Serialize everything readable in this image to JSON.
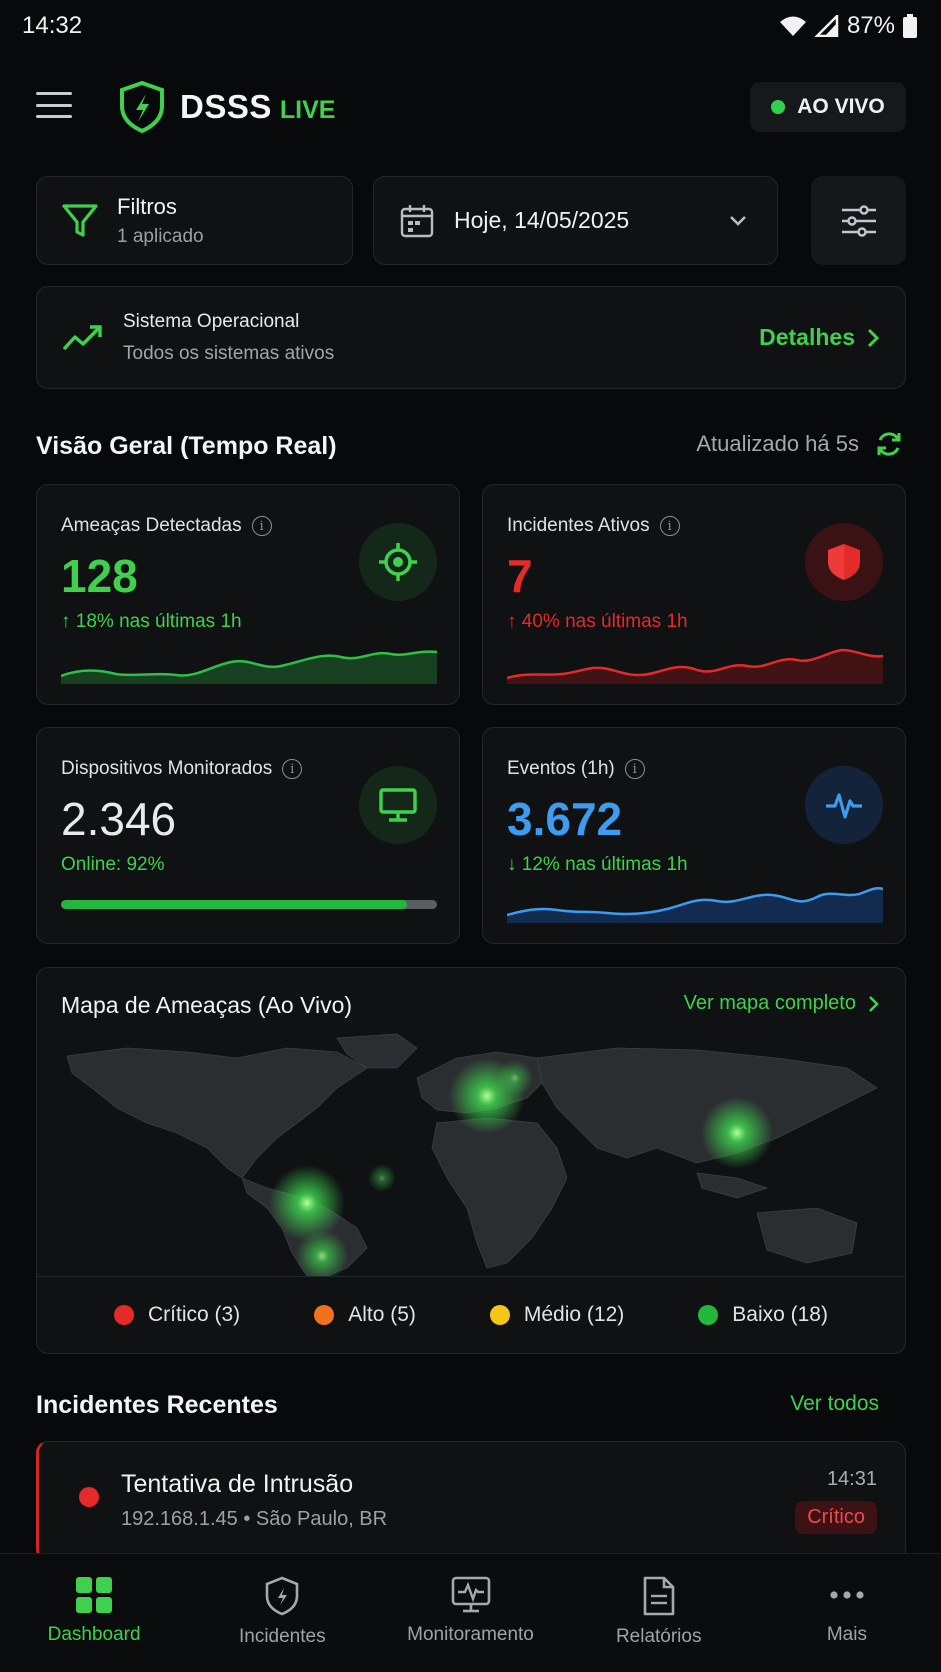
{
  "status_bar": {
    "time": "14:32",
    "battery": "87%"
  },
  "header": {
    "brand": "DSSS",
    "brand_suffix": "LIVE",
    "live_label": "AO VIVO"
  },
  "filters": {
    "title": "Filtros",
    "subtitle": "1 aplicado"
  },
  "date_picker": {
    "value": "Hoje, 14/05/2025"
  },
  "system": {
    "title": "Sistema Operacional",
    "subtitle": "Todos os sistemas ativos",
    "link": "Detalhes"
  },
  "overview": {
    "title": "Visão Geral (Tempo Real)",
    "updated": "Atualizado há 5s",
    "cards": [
      {
        "label": "Ameaças Detectadas",
        "value": "128",
        "change": "18% nas últimas 1h",
        "color": "#3fd14e",
        "trend": "up"
      },
      {
        "label": "Incidentes Ativos",
        "value": "7",
        "change": "40% nas últimas 1h",
        "color": "#e52a2a",
        "trend": "up"
      },
      {
        "label": "Dispositivos Monitorados",
        "value": "2.346",
        "change": "Online: 92%",
        "online_fraction": 0.92,
        "color": "#22b83b"
      },
      {
        "label": "Eventos (1h)",
        "value": "3.672",
        "change": "12% nas últimas 1h",
        "color": "#3b9cf0",
        "trend": "down"
      }
    ]
  },
  "map": {
    "title": "Mapa de Ameaças (Ao Vivo)",
    "link": "Ver mapa completo",
    "legend": [
      {
        "label": "Crítico (3)",
        "color": "#e52a2a"
      },
      {
        "label": "Alto (5)",
        "color": "#f2711c"
      },
      {
        "label": "Médio (12)",
        "color": "#f5c518"
      },
      {
        "label": "Baixo (18)",
        "color": "#22b83b"
      }
    ]
  },
  "incidents": {
    "title": "Incidentes Recentes",
    "link": "Ver todos",
    "items": [
      {
        "title": "Tentativa de Intrusão",
        "subtitle": "192.168.1.45 • São Paulo, BR",
        "time": "14:31",
        "severity": "Crítico"
      }
    ]
  },
  "nav": {
    "items": [
      {
        "label": "Dashboard",
        "icon": "grid-icon",
        "active": true
      },
      {
        "label": "Incidentes",
        "icon": "shield-icon"
      },
      {
        "label": "Monitoramento",
        "icon": "monitor-pulse-icon"
      },
      {
        "label": "Relatórios",
        "icon": "document-icon"
      },
      {
        "label": "Mais",
        "icon": "more-icon"
      }
    ]
  }
}
